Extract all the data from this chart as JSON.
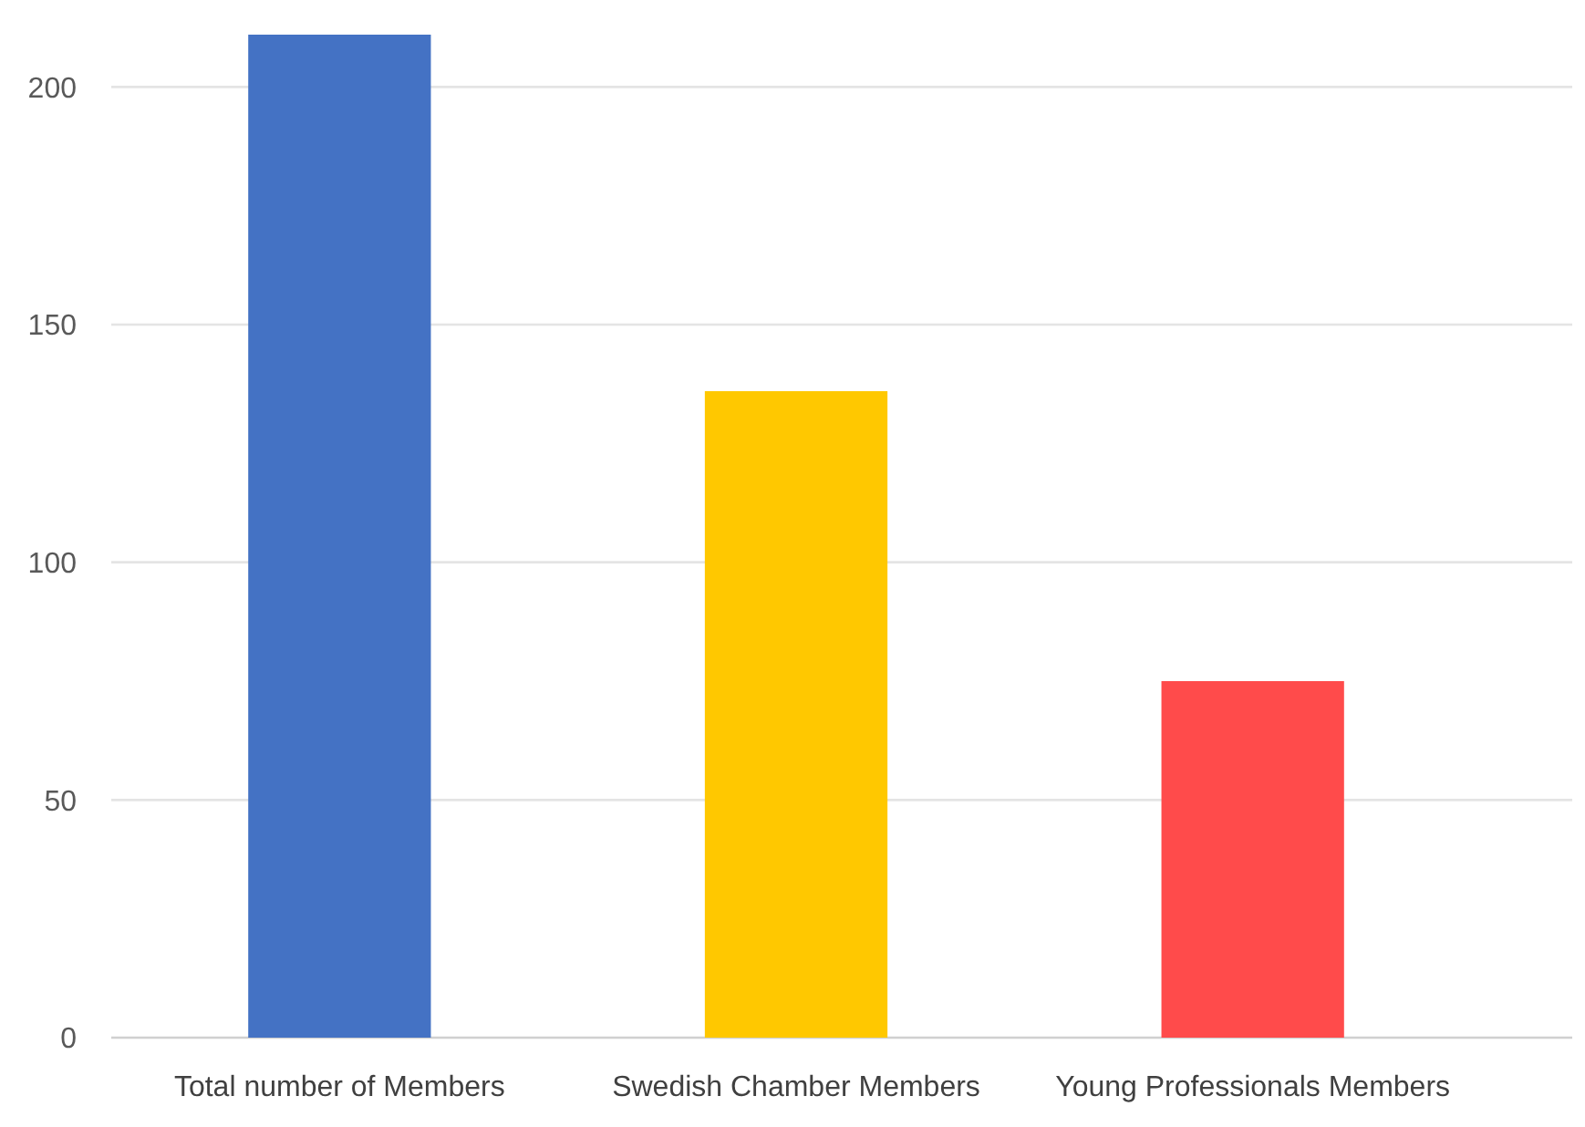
{
  "chart_data": {
    "type": "bar",
    "categories": [
      "Total number of Members",
      "Swedish Chamber Members",
      "Young Professionals Members"
    ],
    "values": [
      211,
      136,
      75
    ],
    "colors": [
      "#4472c4",
      "#ffc800",
      "#ff4b4b"
    ],
    "ylim": [
      0,
      211
    ],
    "yticks": [
      0,
      50,
      100,
      150,
      200
    ],
    "grid": "y"
  }
}
